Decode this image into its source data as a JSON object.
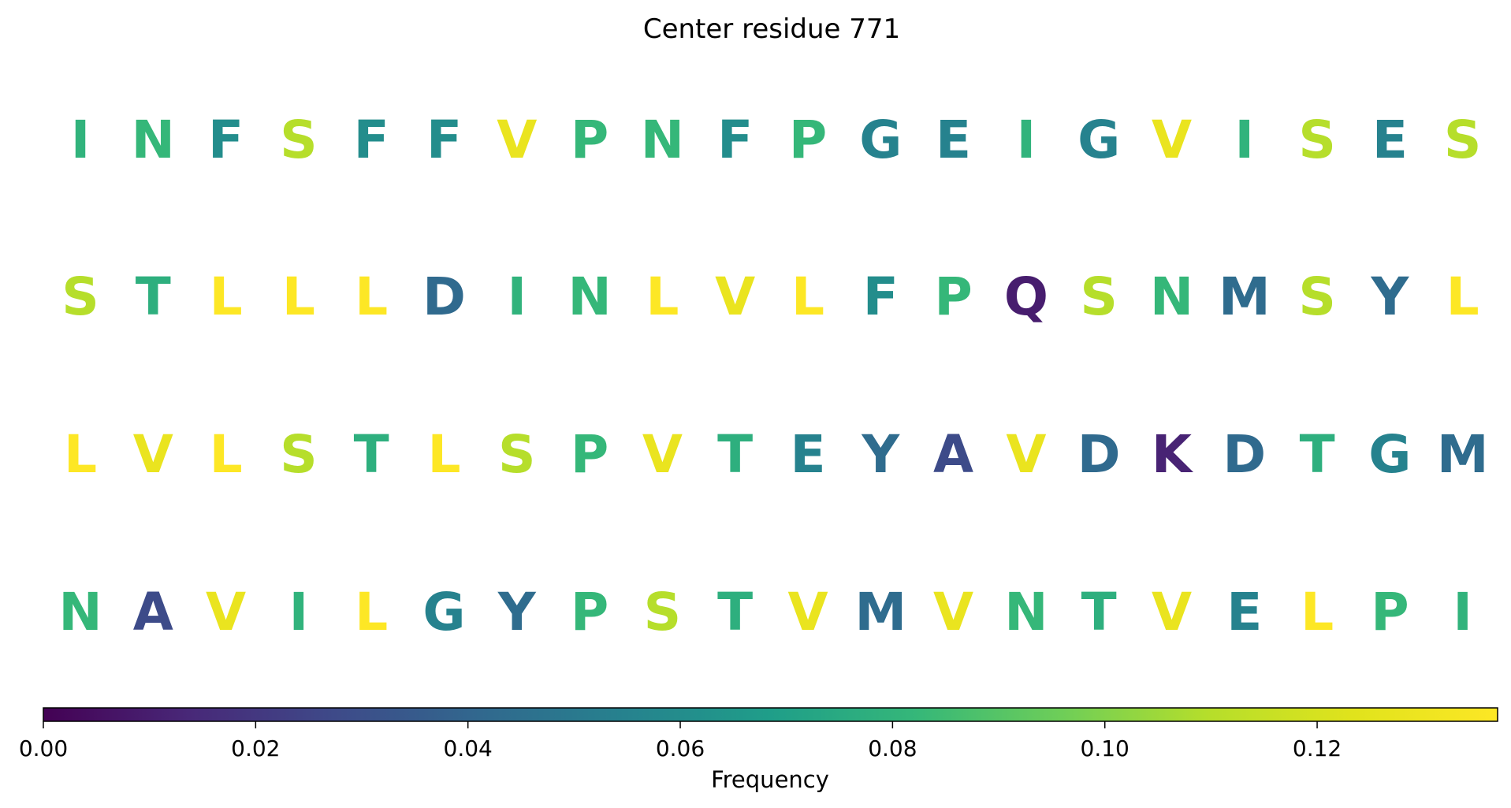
{
  "chart_data": {
    "type": "heatmap",
    "title": "Center residue 771",
    "rows": [
      {
        "letters": [
          "I",
          "N",
          "F",
          "S",
          "F",
          "F",
          "V",
          "P",
          "N",
          "F",
          "P",
          "G",
          "E",
          "I",
          "G",
          "V",
          "I",
          "S",
          "E",
          "S"
        ],
        "values": [
          0.08,
          0.082,
          0.06,
          0.11,
          0.06,
          0.06,
          0.128,
          0.082,
          0.082,
          0.06,
          0.082,
          0.055,
          0.055,
          0.08,
          0.055,
          0.128,
          0.08,
          0.11,
          0.055,
          0.11
        ]
      },
      {
        "letters": [
          "S",
          "T",
          "L",
          "L",
          "L",
          "D",
          "I",
          "N",
          "L",
          "V",
          "L",
          "F",
          "P",
          "Q",
          "S",
          "N",
          "M",
          "S",
          "Y",
          "L"
        ],
        "values": [
          0.11,
          0.078,
          0.137,
          0.137,
          0.137,
          0.042,
          0.08,
          0.082,
          0.137,
          0.128,
          0.137,
          0.06,
          0.082,
          0.01,
          0.11,
          0.082,
          0.043,
          0.11,
          0.043,
          0.137
        ]
      },
      {
        "letters": [
          "L",
          "V",
          "L",
          "S",
          "T",
          "L",
          "S",
          "P",
          "V",
          "T",
          "E",
          "Y",
          "A",
          "V",
          "D",
          "K",
          "D",
          "T",
          "G",
          "M"
        ],
        "values": [
          0.137,
          0.128,
          0.137,
          0.11,
          0.078,
          0.137,
          0.11,
          0.082,
          0.128,
          0.078,
          0.055,
          0.043,
          0.028,
          0.128,
          0.042,
          0.012,
          0.042,
          0.078,
          0.055,
          0.043
        ]
      },
      {
        "letters": [
          "N",
          "A",
          "V",
          "I",
          "L",
          "G",
          "Y",
          "P",
          "S",
          "T",
          "V",
          "M",
          "V",
          "N",
          "T",
          "V",
          "E",
          "L",
          "P",
          "I"
        ],
        "values": [
          0.082,
          0.028,
          0.128,
          0.08,
          0.137,
          0.055,
          0.043,
          0.082,
          0.11,
          0.078,
          0.128,
          0.043,
          0.128,
          0.082,
          0.078,
          0.128,
          0.055,
          0.137,
          0.082,
          0.08
        ]
      }
    ],
    "colorbar": {
      "label": "Frequency",
      "min": 0.0,
      "max": 0.137,
      "ticks": [
        0.0,
        0.02,
        0.04,
        0.06,
        0.08,
        0.1,
        0.12
      ],
      "tick_labels": [
        "0.00",
        "0.02",
        "0.04",
        "0.06",
        "0.08",
        "0.10",
        "0.12"
      ],
      "colormap": "viridis"
    }
  }
}
